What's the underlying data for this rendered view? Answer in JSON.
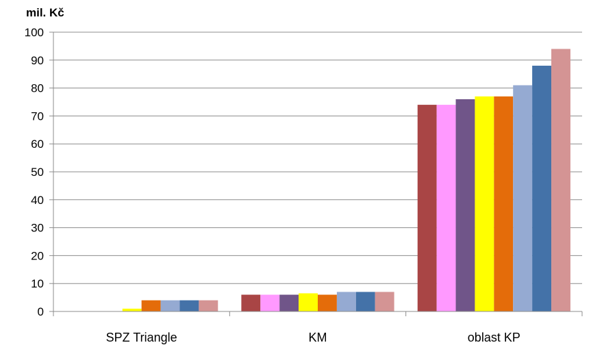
{
  "chart_data": {
    "type": "bar",
    "ylabel": "mil. Kč",
    "ylim": [
      0,
      100
    ],
    "yticks": [
      0,
      10,
      20,
      30,
      40,
      50,
      60,
      70,
      80,
      90,
      100
    ],
    "grid": true,
    "legend": "none",
    "categories": [
      "SPZ Triangle",
      "KM",
      "oblast KP"
    ],
    "series": [
      {
        "color": "#a94545",
        "values": [
          0,
          6,
          74
        ]
      },
      {
        "color": "#ff99ff",
        "values": [
          0,
          6,
          74
        ]
      },
      {
        "color": "#705589",
        "values": [
          0,
          6,
          76
        ]
      },
      {
        "color": "#ffff00",
        "values": [
          1,
          6.5,
          77
        ]
      },
      {
        "color": "#e46c0a",
        "values": [
          4,
          6,
          77
        ]
      },
      {
        "color": "#95aad2",
        "values": [
          4,
          7,
          81
        ]
      },
      {
        "color": "#4472a8",
        "values": [
          4,
          7,
          88
        ]
      },
      {
        "color": "#d49494",
        "values": [
          4,
          7,
          94
        ]
      }
    ]
  }
}
